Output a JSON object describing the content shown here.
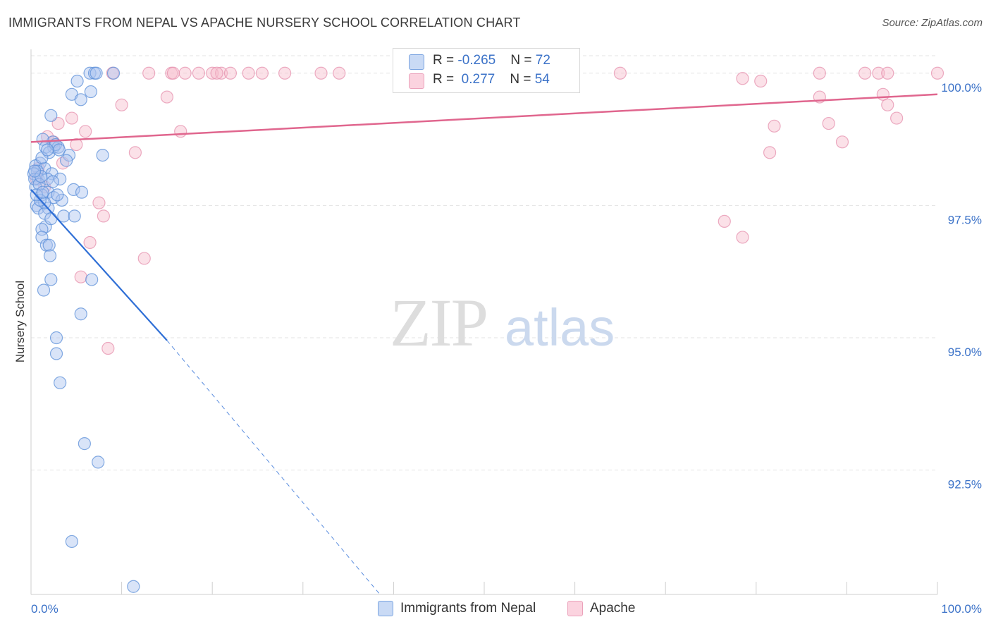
{
  "header": {
    "title": "IMMIGRANTS FROM NEPAL VS APACHE NURSERY SCHOOL CORRELATION CHART",
    "source": "Source: ZipAtlas.com"
  },
  "watermark": {
    "zip": "ZIP",
    "atlas": "atlas"
  },
  "legend_top": {
    "row1": {
      "r_label": "R = ",
      "r_value": "-0.265",
      "n_label": "N = ",
      "n_value": "72"
    },
    "row2": {
      "r_label": "R = ",
      "r_value": " 0.277",
      "n_label": "N = ",
      "n_value": "54"
    }
  },
  "legend_bottom": {
    "series1": "Immigrants from Nepal",
    "series2": "Apache"
  },
  "colors": {
    "blue_fill": "#aac4ef",
    "blue_stroke": "#5b8fd8",
    "blue_line": "#2f6fd6",
    "pink_fill": "#f6bccd",
    "pink_stroke": "#e690ad",
    "pink_line": "#e0668e",
    "tick_text": "#3b72c8",
    "grid": "#e3e3e3"
  },
  "chart_data": {
    "type": "scatter",
    "title": "IMMIGRANTS FROM NEPAL VS APACHE NURSERY SCHOOL CORRELATION CHART",
    "xlabel": "",
    "ylabel": "Nursery School",
    "xlim": [
      0,
      100
    ],
    "ylim": [
      90.15,
      100.45
    ],
    "x_tick_labels": [
      "0.0%",
      "100.0%"
    ],
    "y_ticks": [
      {
        "value": 100.0,
        "label": "100.0%"
      },
      {
        "value": 97.5,
        "label": "97.5%"
      },
      {
        "value": 95.0,
        "label": "95.0%"
      },
      {
        "value": 92.5,
        "label": "92.5%"
      }
    ],
    "grid": true,
    "legend_position": "bottom",
    "series": [
      {
        "name": "Immigrants from Nepal",
        "color": "#aac4ef",
        "r": -0.265,
        "n": 72,
        "trend": {
          "x": [
            0.0,
            15.0
          ],
          "y": [
            97.8,
            94.95
          ]
        },
        "trend_extension": {
          "x": [
            15.0,
            38.5
          ],
          "y": [
            94.95,
            90.15
          ]
        },
        "points": [
          [
            6.5,
            100.0
          ],
          [
            7.0,
            100.0
          ],
          [
            9.1,
            100.0
          ],
          [
            7.2,
            100.0
          ],
          [
            5.1,
            99.85
          ],
          [
            6.6,
            99.65
          ],
          [
            4.5,
            99.6
          ],
          [
            5.5,
            99.5
          ],
          [
            2.2,
            99.2
          ],
          [
            2.4,
            98.7
          ],
          [
            1.3,
            98.75
          ],
          [
            2.5,
            98.6
          ],
          [
            1.6,
            98.6
          ],
          [
            2.0,
            98.5
          ],
          [
            3.0,
            98.6
          ],
          [
            4.2,
            98.45
          ],
          [
            7.9,
            98.45
          ],
          [
            1.0,
            98.3
          ],
          [
            0.5,
            98.25
          ],
          [
            1.5,
            98.2
          ],
          [
            0.7,
            98.15
          ],
          [
            0.3,
            98.1
          ],
          [
            2.3,
            98.1
          ],
          [
            0.8,
            98.0
          ],
          [
            1.8,
            98.0
          ],
          [
            3.2,
            98.0
          ],
          [
            0.5,
            97.85
          ],
          [
            4.7,
            97.8
          ],
          [
            5.6,
            97.75
          ],
          [
            1.9,
            97.75
          ],
          [
            1.2,
            97.7
          ],
          [
            2.5,
            97.65
          ],
          [
            3.4,
            97.6
          ],
          [
            0.6,
            97.5
          ],
          [
            0.8,
            97.45
          ],
          [
            1.9,
            97.45
          ],
          [
            1.5,
            97.35
          ],
          [
            3.6,
            97.3
          ],
          [
            4.8,
            97.3
          ],
          [
            1.6,
            97.1
          ],
          [
            1.2,
            97.05
          ],
          [
            1.2,
            96.9
          ],
          [
            1.7,
            96.75
          ],
          [
            2.0,
            96.75
          ],
          [
            2.1,
            96.55
          ],
          [
            2.2,
            96.1
          ],
          [
            1.4,
            95.9
          ],
          [
            6.7,
            96.1
          ],
          [
            5.5,
            95.45
          ],
          [
            2.8,
            95.0
          ],
          [
            2.8,
            94.7
          ],
          [
            3.2,
            94.15
          ],
          [
            5.9,
            93.0
          ],
          [
            7.4,
            92.65
          ],
          [
            4.5,
            91.15
          ],
          [
            11.3,
            90.3
          ],
          [
            1.2,
            98.4
          ],
          [
            0.4,
            98.0
          ],
          [
            2.9,
            97.7
          ],
          [
            0.9,
            97.9
          ],
          [
            1.1,
            98.05
          ],
          [
            2.7,
            98.65
          ],
          [
            3.9,
            98.35
          ],
          [
            1.5,
            97.55
          ],
          [
            2.4,
            97.95
          ],
          [
            1.0,
            97.6
          ],
          [
            0.6,
            97.7
          ],
          [
            2.2,
            97.25
          ],
          [
            1.3,
            97.75
          ],
          [
            0.4,
            98.15
          ],
          [
            1.8,
            98.55
          ],
          [
            3.1,
            98.55
          ]
        ]
      },
      {
        "name": "Apache",
        "color": "#f6bccd",
        "r": 0.277,
        "n": 54,
        "trend": {
          "x": [
            0.0,
            100.0
          ],
          "y": [
            98.7,
            99.6
          ]
        },
        "points": [
          [
            9.0,
            100.0
          ],
          [
            13.0,
            100.0
          ],
          [
            15.5,
            100.0
          ],
          [
            17.0,
            100.0
          ],
          [
            18.5,
            100.0
          ],
          [
            20.0,
            100.0
          ],
          [
            21.0,
            100.0
          ],
          [
            22.0,
            100.0
          ],
          [
            24.0,
            100.0
          ],
          [
            25.5,
            100.0
          ],
          [
            28.0,
            100.0
          ],
          [
            32.0,
            100.0
          ],
          [
            34.0,
            100.0
          ],
          [
            43.0,
            100.0
          ],
          [
            65.0,
            100.0
          ],
          [
            87.0,
            100.0
          ],
          [
            92.0,
            100.0
          ],
          [
            93.5,
            100.0
          ],
          [
            94.5,
            100.0
          ],
          [
            100.0,
            100.0
          ],
          [
            20.5,
            100.0
          ],
          [
            15.7,
            100.0
          ],
          [
            78.5,
            99.9
          ],
          [
            80.5,
            99.85
          ],
          [
            94.0,
            99.6
          ],
          [
            87.0,
            99.55
          ],
          [
            15.0,
            99.55
          ],
          [
            10.0,
            99.4
          ],
          [
            94.5,
            99.4
          ],
          [
            4.5,
            99.15
          ],
          [
            3.0,
            99.05
          ],
          [
            95.5,
            99.15
          ],
          [
            88.0,
            99.05
          ],
          [
            82.0,
            99.0
          ],
          [
            6.0,
            98.9
          ],
          [
            16.5,
            98.9
          ],
          [
            1.8,
            98.8
          ],
          [
            2.5,
            98.7
          ],
          [
            5.0,
            98.65
          ],
          [
            3.5,
            98.3
          ],
          [
            81.5,
            98.5
          ],
          [
            11.5,
            98.5
          ],
          [
            89.5,
            98.7
          ],
          [
            0.8,
            98.2
          ],
          [
            0.6,
            98.0
          ],
          [
            7.5,
            97.55
          ],
          [
            8.0,
            97.3
          ],
          [
            76.5,
            97.2
          ],
          [
            6.5,
            96.8
          ],
          [
            78.5,
            96.9
          ],
          [
            12.5,
            96.5
          ],
          [
            5.5,
            96.15
          ],
          [
            8.5,
            94.8
          ],
          [
            1.5,
            97.85
          ]
        ]
      }
    ]
  }
}
